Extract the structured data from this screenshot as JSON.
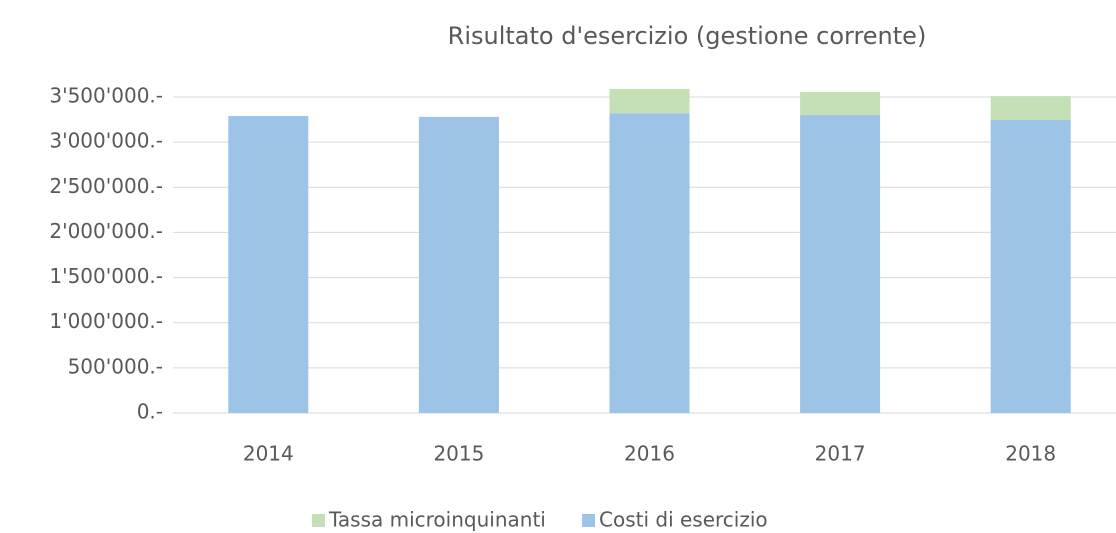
{
  "chart_data": {
    "type": "bar",
    "stacked": true,
    "title": "Risultato d'esercizio (gestione corrente)",
    "categories": [
      "2014",
      "2015",
      "2016",
      "2017",
      "2018"
    ],
    "series": [
      {
        "name": "Costi di esercizio",
        "color": "#9dc3e6",
        "values": [
          3290000,
          3280000,
          3320000,
          3300000,
          3245000
        ]
      },
      {
        "name": "Tassa microinquinanti",
        "color": "#c5e0b4",
        "values": [
          0,
          0,
          270000,
          255000,
          265000
        ]
      }
    ],
    "ylim": [
      0,
      3500000
    ],
    "yticks": [
      {
        "value": 0,
        "label": "0.-"
      },
      {
        "value": 500000,
        "label": "500'000.-"
      },
      {
        "value": 1000000,
        "label": "1'000'000.-"
      },
      {
        "value": 1500000,
        "label": "1'500'000.-"
      },
      {
        "value": 2000000,
        "label": "2'000'000.-"
      },
      {
        "value": 2500000,
        "label": "2'500'000.-"
      },
      {
        "value": 3000000,
        "label": "3'000'000.-"
      },
      {
        "value": 3500000,
        "label": "3'500'000.-"
      }
    ],
    "grid": true,
    "legend": "bottom"
  }
}
